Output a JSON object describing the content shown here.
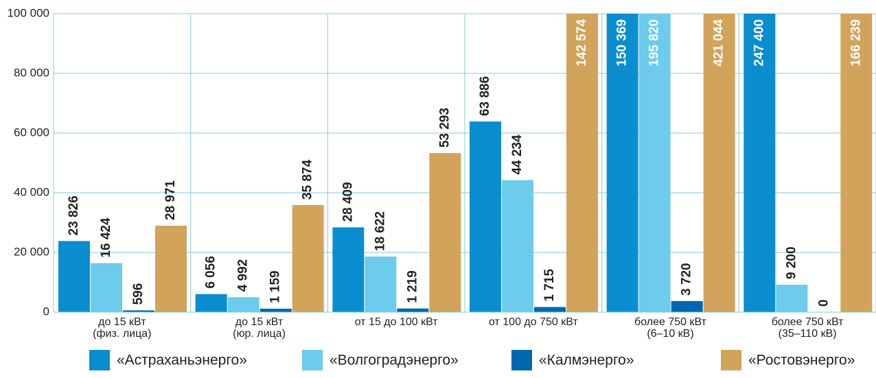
{
  "chart_data": {
    "type": "bar",
    "categories": [
      "до 15 кВт\n(физ. лица)",
      "до 15 кВт\n(юр. лица)",
      "от 15 до 100 кВт",
      "от 100 до 750 кВт",
      "более 750 кВт\n(6–10 кВ)",
      "более 750 кВт\n(35–110 кВ)"
    ],
    "series": [
      {
        "name": "«Астраханьэнерго»",
        "color": "#0a8ed0",
        "values": [
          23826,
          6056,
          28409,
          63886,
          150369,
          247400
        ],
        "value_labels": [
          "23 826",
          "6 056",
          "28 409",
          "63 886",
          "150 369",
          "247 400"
        ]
      },
      {
        "name": "«Волгоградэнерго»",
        "color": "#6dcbec",
        "values": [
          16424,
          4992,
          18622,
          44234,
          195820,
          9200
        ],
        "value_labels": [
          "16 424",
          "4 992",
          "18 622",
          "44 234",
          "195 820",
          "9 200"
        ]
      },
      {
        "name": "«Калмэнерго»",
        "color": "#0068b1",
        "values": [
          596,
          1159,
          1219,
          1715,
          3720,
          0
        ],
        "value_labels": [
          "596",
          "1 159",
          "1 219",
          "1 715",
          "3 720",
          "0"
        ]
      },
      {
        "name": "«Ростовэнерго»",
        "color": "#d2a35a",
        "values": [
          28971,
          35874,
          53293,
          142574,
          421044,
          166239
        ],
        "value_labels": [
          "28 971",
          "35 874",
          "53 293",
          "142 574",
          "421 044",
          "166 239"
        ]
      }
    ],
    "ylim": [
      0,
      100000
    ],
    "yticks": [
      0,
      {
        "value": 20000,
        "label": "20 000"
      },
      {
        "value": 40000,
        "label": "40 000"
      },
      {
        "value": 60000,
        "label": "60 000"
      },
      {
        "value": 80000,
        "label": "80 000"
      },
      {
        "value": 100000,
        "label": "100 000"
      }
    ],
    "grid": true,
    "legend": "bottom"
  }
}
